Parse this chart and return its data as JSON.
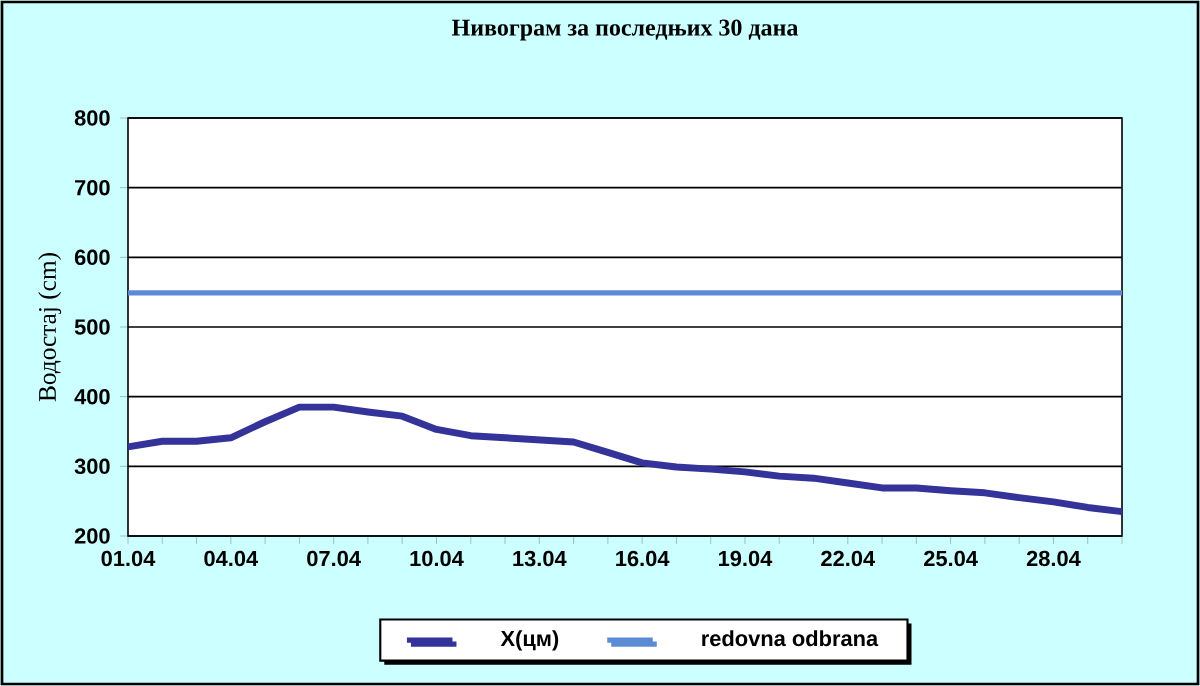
{
  "chart_data": {
    "type": "line",
    "title": "Нивограм за последњих 30 дана",
    "ylabel": "Водостај (cm)",
    "categories": [
      "01.04",
      null,
      null,
      "04.04",
      null,
      null,
      "07.04",
      null,
      null,
      "10.04",
      null,
      null,
      "13.04",
      null,
      null,
      "16.04",
      null,
      null,
      "19.04",
      null,
      null,
      "22.04",
      null,
      null,
      "25.04",
      null,
      null,
      "28.04",
      null,
      null
    ],
    "series": [
      {
        "name": "X(цм)",
        "color": "#333399",
        "values": [
          328,
          336,
          336,
          341,
          364,
          385,
          385,
          378,
          372,
          353,
          344,
          341,
          338,
          335,
          320,
          305,
          299,
          296,
          292,
          286,
          283,
          276,
          269,
          269,
          265,
          262,
          255,
          249,
          241,
          235
        ]
      },
      {
        "name": "redovna odbrana",
        "color": "#5b8bd4",
        "values": [
          549,
          549,
          549,
          549,
          549,
          549,
          549,
          549,
          549,
          549,
          549,
          549,
          549,
          549,
          549,
          549,
          549,
          549,
          549,
          549,
          549,
          549,
          549,
          549,
          549,
          549,
          549,
          549,
          549,
          549
        ]
      }
    ],
    "ylim": [
      200,
      800
    ],
    "yticks": [
      200,
      300,
      400,
      500,
      600,
      700,
      800
    ],
    "grid": "y",
    "legend": "bottom",
    "marker": "none",
    "line_style": "solid"
  }
}
